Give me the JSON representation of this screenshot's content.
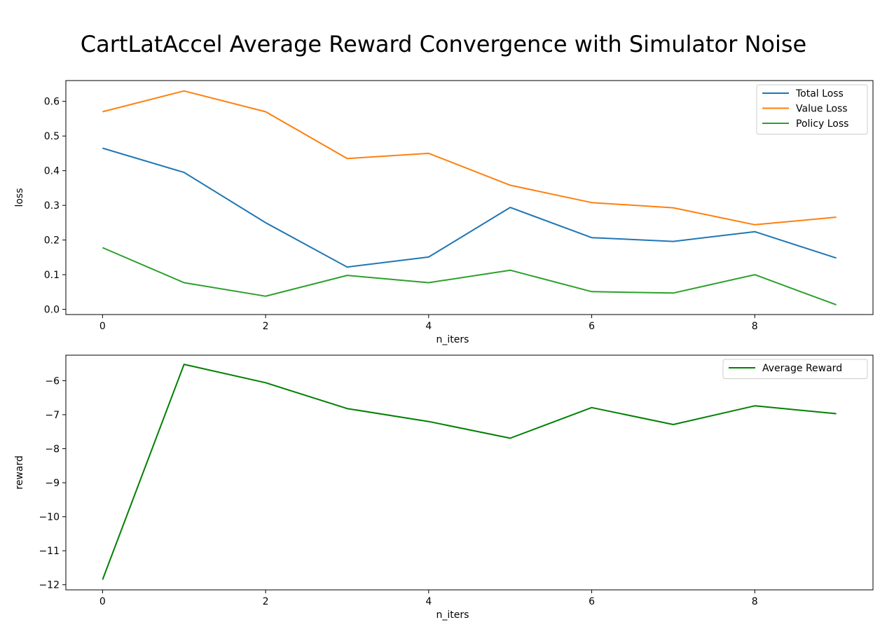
{
  "figure": {
    "title": "CartLatAccel Average Reward Convergence with Simulator Noise"
  },
  "chart_data": [
    {
      "type": "line",
      "title": "",
      "xlabel": "n_iters",
      "ylabel": "loss",
      "x": [
        0,
        1,
        2,
        3,
        4,
        5,
        6,
        7,
        8,
        9
      ],
      "xlim": [
        -0.45,
        9.45
      ],
      "ylim": [
        -0.015,
        0.66
      ],
      "xticks": [
        0,
        2,
        4,
        6,
        8
      ],
      "yticks": [
        0.0,
        0.1,
        0.2,
        0.3,
        0.4,
        0.5,
        0.6
      ],
      "ytick_labels": [
        "0.0",
        "0.1",
        "0.2",
        "0.3",
        "0.4",
        "0.5",
        "0.6"
      ],
      "legend_position": "top-right",
      "grid": false,
      "series": [
        {
          "name": "Total Loss",
          "color": "#1f77b4",
          "values": [
            0.465,
            0.395,
            0.25,
            0.122,
            0.151,
            0.294,
            0.207,
            0.196,
            0.224,
            0.148
          ]
        },
        {
          "name": "Value Loss",
          "color": "#ff7f0e",
          "values": [
            0.57,
            0.63,
            0.57,
            0.435,
            0.45,
            0.358,
            0.308,
            0.293,
            0.244,
            0.266
          ]
        },
        {
          "name": "Policy Loss",
          "color": "#2ca02c",
          "values": [
            0.178,
            0.077,
            0.038,
            0.098,
            0.077,
            0.113,
            0.051,
            0.047,
            0.1,
            0.013
          ]
        }
      ]
    },
    {
      "type": "line",
      "title": "",
      "xlabel": "n_iters",
      "ylabel": "reward",
      "x": [
        0,
        1,
        2,
        3,
        4,
        5,
        6,
        7,
        8,
        9
      ],
      "xlim": [
        -0.45,
        9.45
      ],
      "ylim": [
        -12.15,
        -5.25
      ],
      "xticks": [
        0,
        2,
        4,
        6,
        8
      ],
      "yticks": [
        -12,
        -11,
        -10,
        -9,
        -8,
        -7,
        -6
      ],
      "ytick_labels": [
        "−12",
        "−11",
        "−10",
        "−9",
        "−8",
        "−7",
        "−6"
      ],
      "legend_position": "top-right",
      "grid": false,
      "series": [
        {
          "name": "Average Reward",
          "color": "#008000",
          "values": [
            -11.85,
            -5.52,
            -6.06,
            -6.82,
            -7.2,
            -7.69,
            -6.79,
            -7.29,
            -6.74,
            -6.97
          ]
        }
      ]
    }
  ]
}
